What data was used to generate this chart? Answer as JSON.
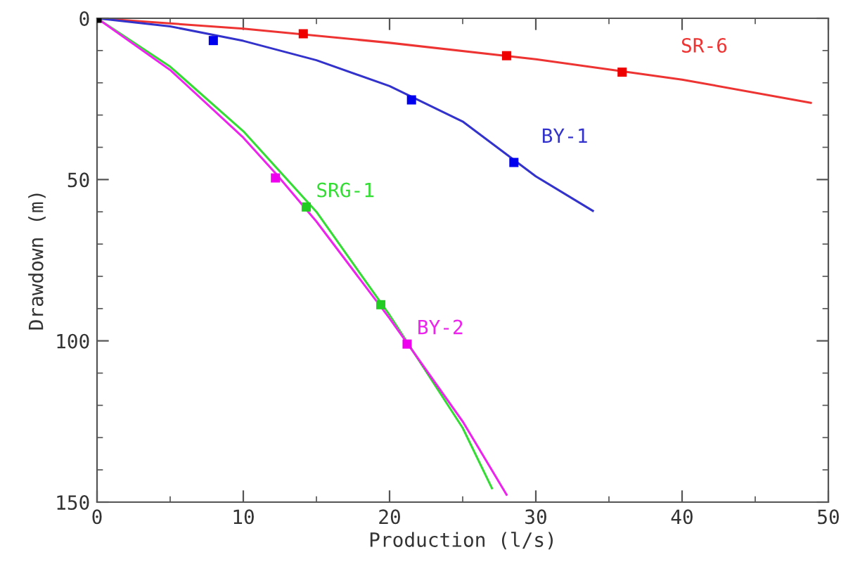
{
  "chart_data": {
    "type": "line",
    "xlabel": "Production (l/s)",
    "ylabel": "Drawdown (m)",
    "xlim": [
      0,
      50
    ],
    "xticks": [
      0,
      10,
      20,
      30,
      40,
      50
    ],
    "ylim": [
      150,
      0
    ],
    "yticks": [
      0,
      50,
      100,
      150
    ],
    "grid": false,
    "legend": false,
    "line_style": "solid",
    "series": [
      {
        "name": "SR-6",
        "color": "#ee3333",
        "x": [
          0,
          10,
          20,
          30,
          40,
          48.8
        ],
        "values": [
          0,
          3.2,
          7.6,
          12.7,
          19.0,
          26.2
        ],
        "marker": "none"
      },
      {
        "name": "BY-1",
        "color": "#3333cc",
        "x": [
          0,
          5,
          10,
          15,
          20,
          25,
          30,
          33.9
        ],
        "values": [
          0,
          2.5,
          7,
          13,
          21,
          32,
          49,
          59.7
        ],
        "marker": "none"
      },
      {
        "name": "SRG-1",
        "color": "#33dd33",
        "x": [
          0,
          5,
          10,
          15,
          20,
          25,
          27
        ],
        "values": [
          0,
          15,
          35,
          60,
          92,
          127,
          145.7
        ],
        "marker": "none"
      },
      {
        "name": "BY-2",
        "color": "#ee22ee",
        "x": [
          0,
          5,
          10,
          12.2,
          15,
          20,
          25,
          28
        ],
        "values": [
          0,
          16,
          37,
          48,
          63,
          93,
          125,
          147.7
        ],
        "marker": "none"
      },
      {
        "type": "scatter",
        "color": "#ee0000",
        "x": [
          14.1,
          28.0,
          35.9
        ],
        "values": [
          4.8,
          11.6,
          16.7
        ],
        "marker": "square"
      },
      {
        "type": "scatter",
        "color": "#0000ee",
        "x": [
          7.95,
          21.5,
          28.5
        ],
        "values": [
          6.9,
          25.3,
          44.7
        ],
        "marker": "square"
      },
      {
        "type": "scatter",
        "color": "#22cc22",
        "x": [
          14.3,
          19.4
        ],
        "values": [
          58.5,
          88.8
        ],
        "marker": "square"
      },
      {
        "type": "scatter",
        "color": "#ee00ee",
        "x": [
          12.2,
          21.2
        ],
        "values": [
          49.5,
          101
        ],
        "marker": "square"
      },
      {
        "type": "scatter",
        "color": "#000000",
        "x": [
          0
        ],
        "values": [
          0
        ],
        "marker": "square"
      }
    ]
  }
}
